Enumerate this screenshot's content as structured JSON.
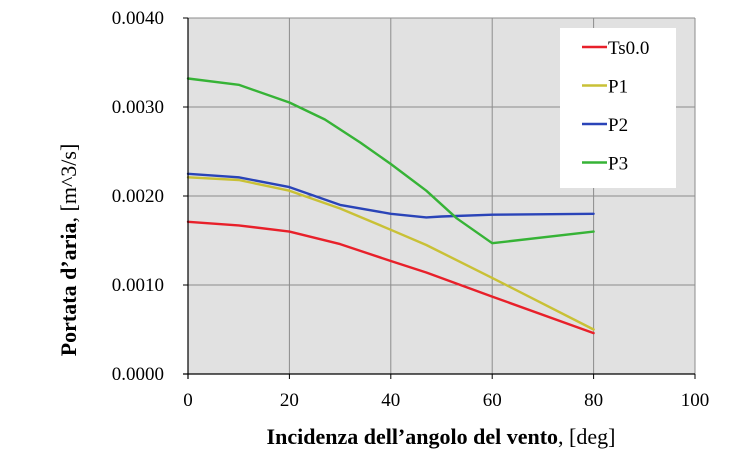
{
  "chart_data": {
    "type": "line",
    "xlabel_bold": "Incidenza dell’angolo del vento",
    "xlabel_unit": ", [deg]",
    "ylabel_bold": "Portata d’aria",
    "ylabel_unit": ", [m^3/s]",
    "xlim": [
      0,
      100
    ],
    "ylim": [
      0,
      0.004
    ],
    "x_ticks": [
      0,
      20,
      40,
      60,
      80,
      100
    ],
    "x_tick_labels": [
      "0",
      "20",
      "40",
      "60",
      "80",
      "100"
    ],
    "y_ticks": [
      0,
      0.001,
      0.002,
      0.003,
      0.004
    ],
    "y_tick_labels": [
      "0.0000",
      "0.0010",
      "0.0020",
      "0.0030",
      "0.0040"
    ],
    "grid": true,
    "legend_position": "top-right",
    "series": [
      {
        "name": "Ts0.0",
        "color": "#e8202a",
        "x": [
          0,
          10,
          20,
          30,
          40,
          47,
          60,
          80
        ],
        "y": [
          0.00171,
          0.00167,
          0.0016,
          0.00146,
          0.00127,
          0.00114,
          0.00087,
          0.00046
        ]
      },
      {
        "name": "P1",
        "color": "#c9c136",
        "x": [
          0,
          10,
          20,
          30,
          40,
          47,
          60,
          80
        ],
        "y": [
          0.00221,
          0.00218,
          0.00206,
          0.00186,
          0.00162,
          0.00145,
          0.00108,
          0.0005
        ]
      },
      {
        "name": "P2",
        "color": "#2a44b8",
        "x": [
          0,
          10,
          20,
          30,
          40,
          47,
          50,
          60,
          80
        ],
        "y": [
          0.00225,
          0.00221,
          0.0021,
          0.0019,
          0.0018,
          0.00176,
          0.00177,
          0.00179,
          0.0018
        ]
      },
      {
        "name": "P3",
        "color": "#36b336",
        "x": [
          0,
          10,
          20,
          27,
          34,
          40,
          47,
          53,
          60,
          80
        ],
        "y": [
          0.00332,
          0.00325,
          0.00305,
          0.00286,
          0.0026,
          0.00236,
          0.00206,
          0.00175,
          0.00147,
          0.0016
        ]
      }
    ]
  }
}
